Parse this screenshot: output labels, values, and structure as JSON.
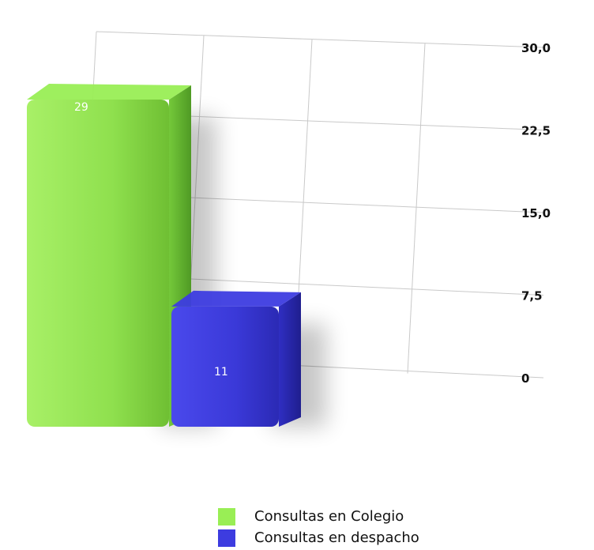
{
  "colors": {
    "series_1": "#99ee55",
    "series_2": "#3d3ce0"
  },
  "chart_data": {
    "type": "bar",
    "categories": [
      "Consultas en Colegio",
      "Consultas en despacho"
    ],
    "values": [
      29,
      11
    ],
    "data_labels": [
      "29",
      "11"
    ],
    "ylim": [
      0,
      30
    ],
    "yticks": [
      0,
      7.5,
      15,
      22.5,
      30
    ],
    "ytick_labels": [
      "0",
      "7,5",
      "15,0",
      "22,5",
      "30,0"
    ],
    "grid": true,
    "legend_position": "bottom",
    "title": "",
    "xlabel": "",
    "ylabel": ""
  }
}
